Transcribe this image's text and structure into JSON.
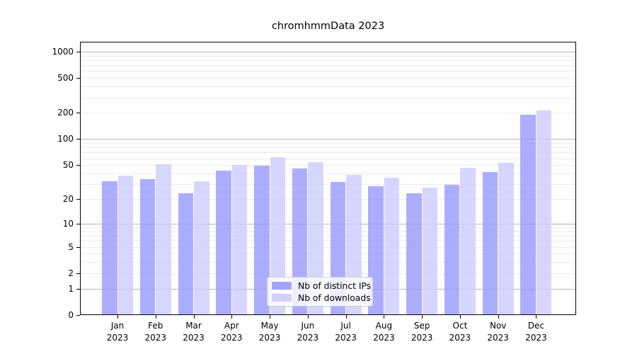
{
  "title": "chromhmmData 2023",
  "chart_data": {
    "type": "bar",
    "title": "chromhmmData 2023",
    "categories": [
      "Jan 2023",
      "Feb 2023",
      "Mar 2023",
      "Apr 2023",
      "May 2023",
      "Jun 2023",
      "Jul 2023",
      "Aug 2023",
      "Sep 2023",
      "Oct 2023",
      "Nov 2023",
      "Dec 2023"
    ],
    "series": [
      {
        "name": "Nb of distinct IPs",
        "color": "#9999ff",
        "values": [
          32,
          34,
          23,
          42,
          48,
          45,
          31,
          28,
          23,
          29,
          41,
          187
        ]
      },
      {
        "name": "Nb of downloads",
        "color": "#ccccff",
        "values": [
          37,
          50,
          32,
          49,
          61,
          53,
          38,
          35,
          27,
          46,
          52,
          209
        ]
      }
    ],
    "yticks": [
      0,
      1,
      2,
      5,
      10,
      20,
      50,
      100,
      200,
      500,
      1000
    ],
    "minor_yticks": [
      2,
      3,
      4,
      5,
      6,
      7,
      8,
      9,
      20,
      30,
      40,
      50,
      60,
      70,
      80,
      90,
      200,
      300,
      400,
      500,
      600,
      700,
      800,
      900
    ],
    "major_gridlines": [
      1,
      10,
      100,
      1000
    ],
    "xlabel": "",
    "ylabel": "",
    "scale": "log10(1+x)",
    "ylim": [
      0,
      1200
    ],
    "grid": "horizontal",
    "legend_position": "lower-center"
  },
  "colors": {
    "major_grid": "#b3b3b3",
    "minor_grid": "#ebebeb",
    "axis": "#000000",
    "background": "#ffffff"
  }
}
